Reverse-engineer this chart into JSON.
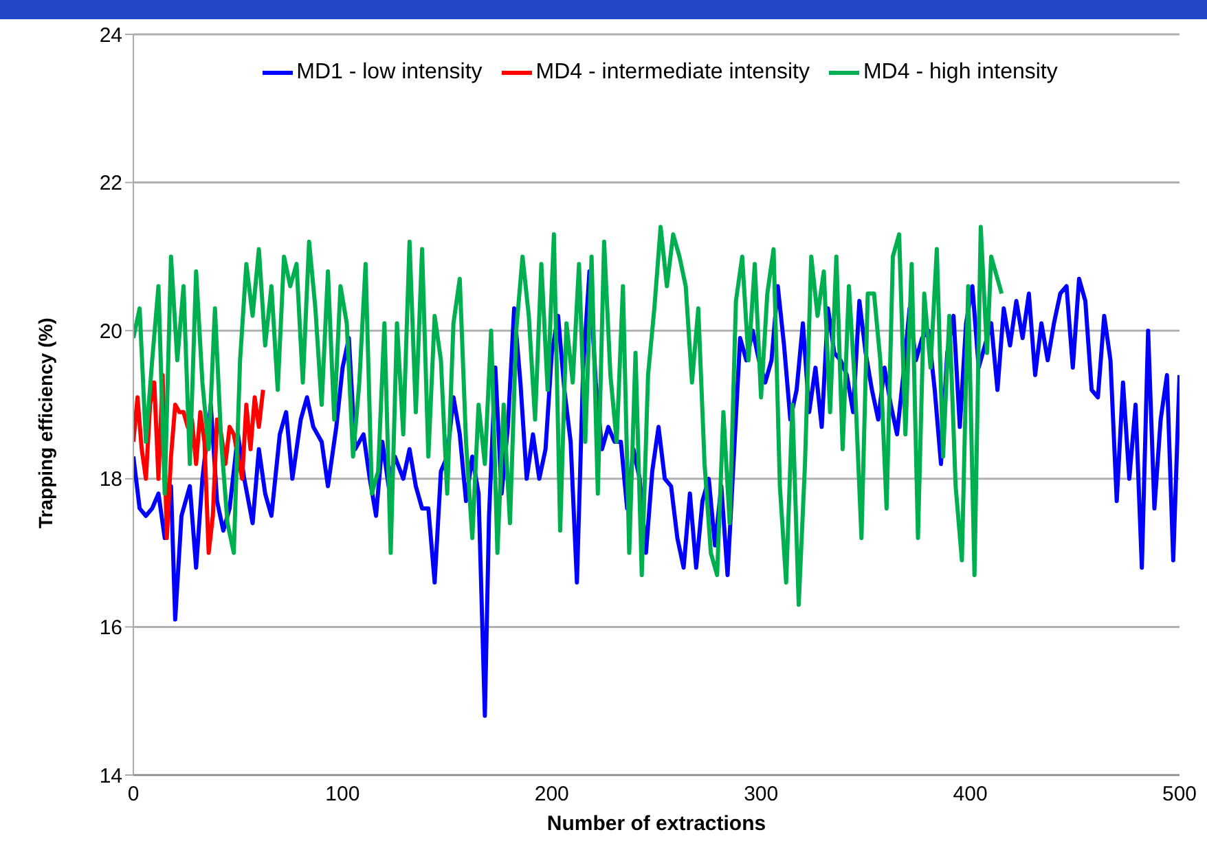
{
  "chart_data": {
    "type": "line",
    "xlabel": "Number of extractions",
    "ylabel": "Trapping efficiency (%)",
    "xlim": [
      0,
      500
    ],
    "xticks": [
      0,
      100,
      200,
      300,
      400,
      500
    ],
    "ylim": [
      14,
      24
    ],
    "yticks": [
      14,
      16,
      18,
      20,
      22,
      24
    ],
    "grid": "y",
    "legend": "top",
    "marker": "none",
    "line_style": "solid",
    "series": [
      {
        "name": "MD1 - low intensity",
        "color": "#0000ff",
        "x": [
          0,
          3,
          6,
          9,
          12,
          15,
          18,
          20,
          23,
          27,
          30,
          33,
          37,
          40,
          43,
          46,
          50,
          53,
          57,
          60,
          63,
          66,
          70,
          73,
          76,
          80,
          83,
          86,
          90,
          93,
          97,
          100,
          103,
          106,
          110,
          113,
          116,
          119,
          122,
          125,
          129,
          132,
          135,
          138,
          141,
          144,
          147,
          150,
          153,
          156,
          159,
          162,
          165,
          168,
          170,
          173,
          176,
          179,
          182,
          185,
          188,
          191,
          194,
          197,
          200,
          203,
          206,
          209,
          212,
          215,
          218,
          221,
          224,
          227,
          230,
          233,
          236,
          239,
          242,
          245,
          248,
          251,
          254,
          257,
          260,
          263,
          266,
          269,
          272,
          275,
          278,
          281,
          284,
          287,
          290,
          293,
          296,
          299,
          302,
          305,
          308,
          311,
          314,
          317,
          320,
          323,
          326,
          329,
          332,
          335,
          338,
          341,
          344,
          347,
          350,
          353,
          356,
          359,
          362,
          365,
          368,
          371,
          374,
          377,
          380,
          383,
          386,
          389,
          392,
          395,
          398,
          401,
          404,
          407,
          410,
          413,
          416,
          419,
          422,
          425,
          428,
          431,
          434,
          437,
          440,
          443,
          446,
          449,
          452,
          455,
          458,
          461,
          464,
          467,
          470,
          473,
          476,
          479,
          482,
          485,
          488,
          491,
          494,
          497,
          500
        ],
        "values": [
          18.3,
          17.6,
          17.5,
          17.6,
          17.8,
          17.2,
          17.9,
          16.1,
          17.5,
          17.9,
          16.8,
          18.0,
          19.0,
          17.7,
          17.3,
          17.6,
          18.6,
          18.0,
          17.4,
          18.4,
          17.8,
          17.5,
          18.6,
          18.9,
          18.0,
          18.8,
          19.1,
          18.7,
          18.5,
          17.9,
          18.7,
          19.5,
          19.9,
          18.4,
          18.6,
          18.0,
          17.5,
          18.5,
          17.9,
          18.3,
          18.0,
          18.4,
          17.9,
          17.6,
          17.6,
          16.6,
          18.1,
          18.3,
          19.1,
          18.6,
          17.7,
          18.3,
          17.8,
          14.8,
          17.5,
          19.5,
          17.8,
          18.7,
          20.3,
          19.3,
          18.0,
          18.6,
          18.0,
          18.4,
          19.7,
          20.2,
          19.2,
          18.5,
          16.6,
          19.5,
          20.8,
          19.3,
          18.4,
          18.7,
          18.5,
          18.5,
          17.6,
          18.4,
          18.0,
          17.0,
          18.1,
          18.7,
          18.0,
          17.9,
          17.2,
          16.8,
          17.8,
          16.8,
          17.7,
          18.0,
          17.1,
          17.9,
          16.7,
          18.3,
          19.9,
          19.6,
          20.0,
          19.6,
          19.3,
          19.6,
          20.6,
          19.8,
          18.8,
          19.2,
          20.1,
          18.9,
          19.5,
          18.7,
          20.3,
          19.7,
          19.6,
          19.4,
          18.9,
          20.4,
          19.7,
          19.2,
          18.8,
          19.5,
          19.0,
          18.6,
          19.4,
          20.3,
          19.6,
          19.9,
          20.0,
          19.2,
          18.2,
          19.7,
          20.2,
          18.7,
          20.1,
          20.6,
          19.5,
          19.8,
          20.1,
          19.2,
          20.3,
          19.8,
          20.4,
          19.9,
          20.5,
          19.4,
          20.1,
          19.6,
          20.1,
          20.5,
          20.6,
          19.5,
          20.7,
          20.4,
          19.2,
          19.1,
          20.2,
          19.6,
          17.7,
          19.3,
          18.0,
          19.0,
          16.8,
          20.0,
          17.6,
          18.8,
          19.4,
          16.9,
          19.4
        ]
      },
      {
        "name": "MD4 - intermediate intensity",
        "color": "#ff0000",
        "x": [
          0,
          2,
          4,
          6,
          8,
          10,
          12,
          14,
          16,
          18,
          20,
          22,
          24,
          26,
          28,
          30,
          32,
          34,
          36,
          38,
          40,
          42,
          44,
          46,
          48,
          50,
          52,
          54,
          56,
          58,
          60,
          62
        ],
        "values": [
          18.5,
          19.1,
          18.4,
          18.0,
          19.0,
          19.3,
          18.0,
          19.4,
          17.2,
          18.3,
          19.0,
          18.9,
          18.9,
          18.7,
          18.8,
          18.2,
          18.9,
          18.5,
          17.0,
          17.5,
          18.8,
          18.6,
          18.2,
          18.7,
          18.6,
          18.3,
          18.0,
          19.0,
          18.4,
          19.1,
          18.7,
          19.2
        ]
      },
      {
        "name": "MD4 - high intensity",
        "color": "#00b050",
        "x": [
          0,
          3,
          6,
          9,
          12,
          15,
          18,
          21,
          24,
          27,
          30,
          33,
          36,
          39,
          42,
          45,
          48,
          51,
          54,
          57,
          60,
          63,
          66,
          69,
          72,
          75,
          78,
          81,
          84,
          87,
          90,
          93,
          96,
          99,
          102,
          105,
          108,
          111,
          114,
          117,
          120,
          123,
          126,
          129,
          132,
          135,
          138,
          141,
          144,
          147,
          150,
          153,
          156,
          159,
          162,
          165,
          168,
          171,
          174,
          177,
          180,
          183,
          186,
          189,
          192,
          195,
          198,
          201,
          204,
          207,
          210,
          213,
          216,
          219,
          222,
          225,
          228,
          231,
          234,
          237,
          240,
          243,
          246,
          249,
          252,
          255,
          258,
          261,
          264,
          267,
          270,
          273,
          276,
          279,
          282,
          285,
          288,
          291,
          294,
          297,
          300,
          303,
          306,
          309,
          312,
          315,
          318,
          321,
          324,
          327,
          330,
          333,
          336,
          339,
          342,
          345,
          348,
          351,
          354,
          357,
          360,
          363,
          366,
          369,
          372,
          375,
          378,
          381,
          384,
          387,
          390,
          393,
          396,
          399,
          402,
          405,
          408,
          410,
          412,
          415
        ],
        "values": [
          19.9,
          20.3,
          18.5,
          19.6,
          20.6,
          17.8,
          21.0,
          19.6,
          20.6,
          18.2,
          20.8,
          19.3,
          18.4,
          20.3,
          18.5,
          17.4,
          17.0,
          19.6,
          20.9,
          20.2,
          21.1,
          19.8,
          20.6,
          19.2,
          21.0,
          20.6,
          20.9,
          19.3,
          21.2,
          20.3,
          19.0,
          20.8,
          18.8,
          20.6,
          20.1,
          18.3,
          19.3,
          20.9,
          17.8,
          18.1,
          20.1,
          17.0,
          20.1,
          18.6,
          21.2,
          18.9,
          21.1,
          18.3,
          20.2,
          19.6,
          17.8,
          20.1,
          20.7,
          18.5,
          17.2,
          19.0,
          18.2,
          20.0,
          17.0,
          19.0,
          17.4,
          20.0,
          21.0,
          20.2,
          18.8,
          20.9,
          19.2,
          21.3,
          17.3,
          20.1,
          19.3,
          20.9,
          18.5,
          21.0,
          17.8,
          21.2,
          19.4,
          18.5,
          20.6,
          17.0,
          19.7,
          16.7,
          19.4,
          20.3,
          21.4,
          20.6,
          21.3,
          21.0,
          20.6,
          19.3,
          20.3,
          18.2,
          17.0,
          16.7,
          18.9,
          17.4,
          20.4,
          21.0,
          19.6,
          20.9,
          19.1,
          20.5,
          21.1,
          17.9,
          16.6,
          19.0,
          16.3,
          18.2,
          21.0,
          20.2,
          20.8,
          18.9,
          21.0,
          18.4,
          20.6,
          19.2,
          17.2,
          20.5,
          20.5,
          19.6,
          17.6,
          21.0,
          21.3,
          18.6,
          20.9,
          17.2,
          20.5,
          19.5,
          21.1,
          18.3,
          20.2,
          17.9,
          16.9,
          20.6,
          16.7,
          21.4,
          19.7,
          21.0,
          20.8,
          20.5
        ]
      }
    ]
  }
}
